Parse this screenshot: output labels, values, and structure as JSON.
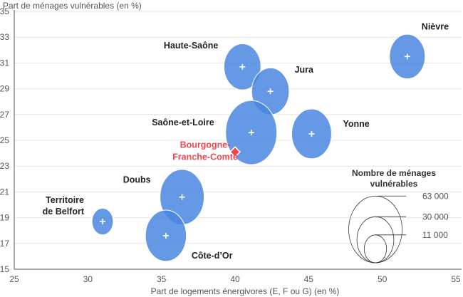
{
  "chart_data": {
    "type": "scatter",
    "subtype": "bubble",
    "ylabel": "Part de ménages vulnérables (en %)",
    "xlabel": "Part de logements énergivores (E, F ou G) (en %)",
    "xlim": [
      25,
      55
    ],
    "ylim": [
      15,
      35
    ],
    "xticks": [
      "25",
      "30",
      "35",
      "40",
      "45",
      "50",
      "55"
    ],
    "yticks": [
      "15",
      "17",
      "19",
      "21",
      "23",
      "25",
      "27",
      "29",
      "31",
      "33",
      "35"
    ],
    "grid": "horizontal",
    "bubble_color": "#4a86e0",
    "highlight_color": "#f0484f",
    "points": [
      {
        "name": "Nièvre",
        "x": 51.7,
        "y": 31.5,
        "size": 28000
      },
      {
        "name": "Haute-Saône",
        "x": 40.5,
        "y": 30.7,
        "size": 30000
      },
      {
        "name": "Jura",
        "x": 42.4,
        "y": 28.8,
        "size": 31000
      },
      {
        "name": "Saône-et-Loire",
        "x": 41.1,
        "y": 25.6,
        "size": 58000
      },
      {
        "name": "Yonne",
        "x": 45.2,
        "y": 25.5,
        "size": 35000
      },
      {
        "name": "Doubs",
        "x": 36.4,
        "y": 20.6,
        "size": 43000
      },
      {
        "name": "Territoire de Belfort",
        "x": 31.0,
        "y": 18.7,
        "size": 10000
      },
      {
        "name": "Côte-d'Or",
        "x": 35.3,
        "y": 17.6,
        "size": 37000
      }
    ],
    "labels": {
      "Nièvre": [
        "Nièvre"
      ],
      "Haute-Saône": [
        "Haute-Saône"
      ],
      "Jura": [
        "Jura"
      ],
      "Saône-et-Loire": [
        "Saône-et-Loire"
      ],
      "Yonne": [
        "Yonne"
      ],
      "Doubs": [
        "Doubs"
      ],
      "Territoire de Belfort": [
        "Territoire",
        "de Belfort"
      ],
      "Côte-d'Or": [
        "Côte-d’Or"
      ]
    },
    "reference": {
      "name": "Bourgogne-Franche-Comté",
      "lines": [
        "Bourgogne-",
        "Franche-Comté"
      ],
      "x": 40.0,
      "y": 24.1
    },
    "legend": {
      "title": [
        "Nombre de ménages",
        "vulnérables"
      ],
      "sizes": [
        63000,
        30000,
        11000
      ],
      "size_labels": [
        "63 000",
        "30 000",
        "11 000"
      ],
      "placement": "bottom-right"
    }
  }
}
